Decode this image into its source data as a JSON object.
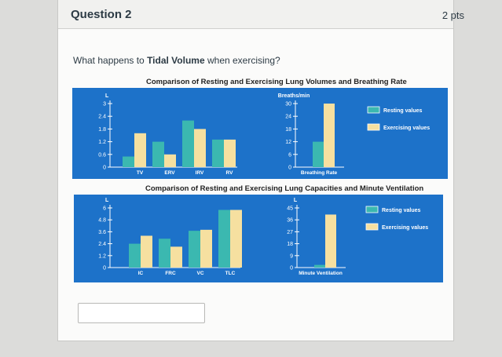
{
  "question": {
    "title": "Question 2",
    "points": "2 pts",
    "prompt_prefix": "What happens to ",
    "prompt_bold": "Tidal Volume",
    "prompt_suffix": " when exercising?",
    "answer_value": ""
  },
  "colors": {
    "panel_blue": "#1d72c9",
    "resting": "#3bb8b0",
    "exercising": "#f6e0a0"
  },
  "chart_data": [
    {
      "type": "bar",
      "title": "Comparison of Resting and Exercising Lung Volumes and Breathing Rate",
      "ylabel": "L",
      "yticks": [
        "3",
        "2.4",
        "1.8",
        "1.2",
        "0.6",
        "0"
      ],
      "ylim": [
        0,
        3
      ],
      "categories": [
        "TV",
        "ERV",
        "IRV",
        "RV"
      ],
      "series": [
        {
          "name": "Resting values",
          "values": [
            0.5,
            1.2,
            2.2,
            1.3
          ]
        },
        {
          "name": "Exercising values",
          "values": [
            1.6,
            0.6,
            1.8,
            1.3
          ]
        }
      ],
      "legend": "right",
      "inset": {
        "ylabel": "Breaths/min",
        "yticks": [
          "30",
          "24",
          "18",
          "12",
          "6",
          "0"
        ],
        "ylim": [
          0,
          30
        ],
        "xlabel": "Breathing Rate",
        "resting": 12,
        "exercising": 30
      }
    },
    {
      "type": "bar",
      "title": "Comparison of Resting and Exercising Lung Capacities and Minute Ventilation",
      "ylabel": "L",
      "yticks": [
        "6",
        "4.8",
        "3.6",
        "2.4",
        "1.2",
        "0"
      ],
      "ylim": [
        0,
        6
      ],
      "categories": [
        "IC",
        "FRC",
        "VC",
        "TLC"
      ],
      "series": [
        {
          "name": "Resting values",
          "values": [
            2.4,
            2.9,
            3.7,
            5.8
          ]
        },
        {
          "name": "Exercising values",
          "values": [
            3.2,
            2.1,
            3.8,
            5.8
          ]
        }
      ],
      "legend": "right",
      "inset": {
        "ylabel": "L",
        "yticks": [
          "45",
          "36",
          "27",
          "18",
          "9",
          "0"
        ],
        "ylim": [
          0,
          45
        ],
        "xlabel": "Minute Ventilation",
        "resting": 2,
        "exercising": 40
      }
    }
  ]
}
